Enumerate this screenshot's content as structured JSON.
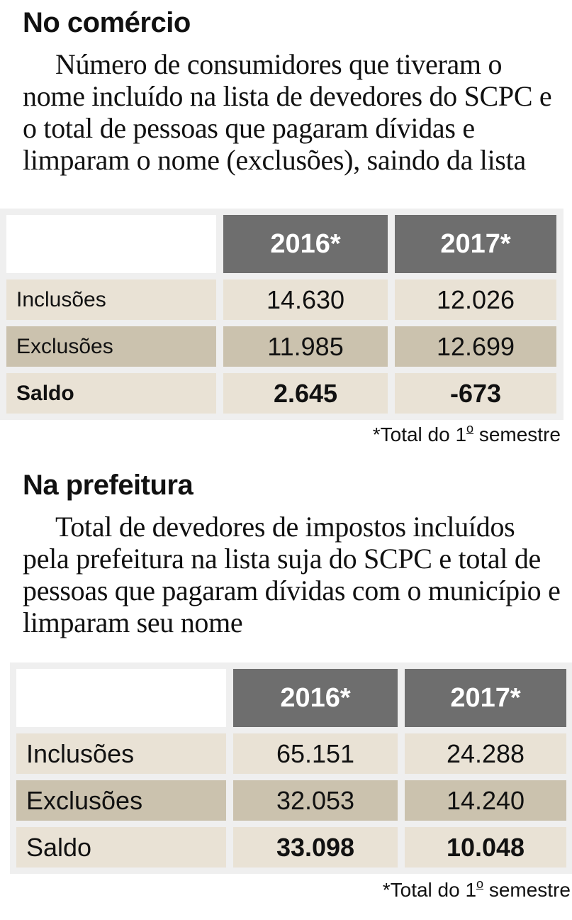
{
  "comercio": {
    "title": "No comércio",
    "description": "Número de consumidores que tiveram o nome incluído na lista de devedores do SCPC e o total de pessoas que pagaram dívidas e limparam o nome (exclusões), saindo da lista",
    "headers": [
      "2016*",
      "2017*"
    ],
    "rows": [
      {
        "label": "Inclusões",
        "v2016": "14.630",
        "v2017": "12.026"
      },
      {
        "label": "Exclusões",
        "v2016": "11.985",
        "v2017": "12.699"
      },
      {
        "label": "Saldo",
        "v2016": "2.645",
        "v2017": "-673"
      }
    ],
    "note_text": "*Total do 1",
    "note_ordinal": "o",
    "note_suffix": " semestre"
  },
  "prefeitura": {
    "title": "Na prefeitura",
    "description": "Total de devedores de impostos incluídos pela prefeitura na lista suja do SCPC e total de pessoas que pagaram dívidas com o município e limparam seu nome",
    "headers": [
      "2016*",
      "2017*"
    ],
    "rows": [
      {
        "label": "Inclusões",
        "v2016": "65.151",
        "v2017": "24.288"
      },
      {
        "label": "Exclusões",
        "v2016": "32.053",
        "v2017": "14.240"
      },
      {
        "label": "Saldo",
        "v2016": "33.098",
        "v2017": "10.048"
      }
    ],
    "note_text": "*Total do 1",
    "note_ordinal": "o",
    "note_suffix": " semestre"
  }
}
